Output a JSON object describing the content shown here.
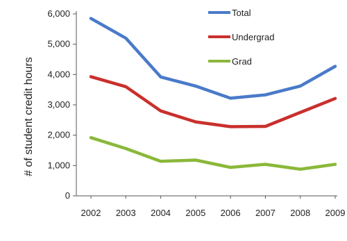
{
  "chart_data": {
    "type": "line",
    "title": "",
    "xlabel": "",
    "ylabel": "# of student credit hours",
    "categories": [
      "2002",
      "2003",
      "2004",
      "2005",
      "2006",
      "2007",
      "2008",
      "2009"
    ],
    "ylim": [
      0,
      6000
    ],
    "yticks": [
      0,
      1000,
      2000,
      3000,
      4000,
      5000,
      6000
    ],
    "ytick_labels": [
      "0",
      "1,000",
      "2,000",
      "3,000",
      "4,000",
      "5,000",
      "6,000"
    ],
    "grid": false,
    "legend_position": "top-right",
    "series": [
      {
        "name": "Total",
        "color": "#4a7ac9",
        "values": [
          5850,
          5200,
          3920,
          3620,
          3220,
          3330,
          3620,
          4270
        ]
      },
      {
        "name": "Undergrad",
        "color": "#c9302c",
        "values": [
          3930,
          3600,
          2800,
          2440,
          2280,
          2290,
          2750,
          3210
        ]
      },
      {
        "name": "Grad",
        "color": "#8ab83a",
        "values": [
          1920,
          1560,
          1140,
          1180,
          940,
          1040,
          880,
          1040
        ]
      }
    ]
  }
}
